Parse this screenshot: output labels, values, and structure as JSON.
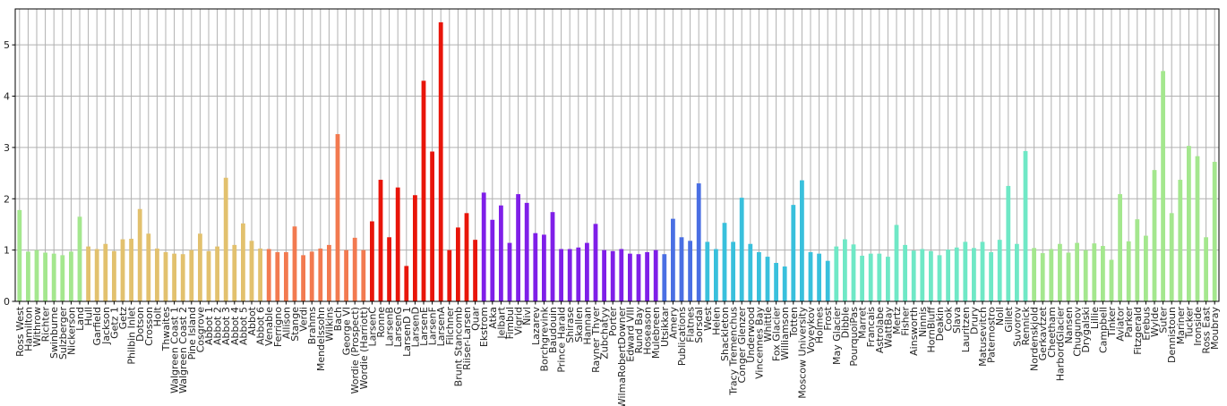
{
  "chart_data": {
    "type": "bar",
    "grid": true,
    "ylim": [
      0,
      5.7
    ],
    "yticks": [
      "0",
      "1",
      "2",
      "3",
      "4",
      "5"
    ],
    "categories": [
      "Ross West",
      "Hamilton",
      "Withrow",
      "Richter",
      "Swinburne",
      "Sulzberger",
      "Nickerson",
      "Land",
      "Hull",
      "Garfield",
      "Jackson",
      "Getz 1",
      "Getz",
      "Philbin Inlet",
      "Dotson",
      "Crosson",
      "Holt",
      "Thwaites",
      "Walgreen Coast 1",
      "Walgreen Coast 2",
      "Pine Island",
      "Cosgrove",
      "Abbot 1",
      "Abbot 2",
      "Abbot 3",
      "Abbot 4",
      "Abbot 5",
      "Abbot",
      "Abbot 6",
      "Venable",
      "Ferrigno",
      "Allison",
      "Stange",
      "Verdi",
      "Brahms",
      "Mendelssohn",
      "Wilkins",
      "Bach",
      "George VI",
      "Wordie (Prospect)",
      "Wordie (Harriott)",
      "LarsenC",
      "Ronne",
      "LarsenB",
      "LarsenG",
      "LarsenD 1",
      "LarsenD",
      "LarsenE",
      "LarsenF",
      "LarsenA",
      "Filchner",
      "Brunt Stancomb",
      "Riiser-Larsen",
      "Quar",
      "Ekstrom",
      "Atka",
      "Jelbart",
      "Fimbul",
      "Vigrid",
      "Nivl",
      "Lazarev",
      "Borchgrevink",
      "Baudouin",
      "Prince Harald",
      "Shirase",
      "Skallen",
      "Hannan",
      "Rayner Thyer",
      "Zubchatyy",
      "Porter",
      "WilmaRobertDowner",
      "Edward VIII",
      "Rund Bay",
      "Hoseason",
      "Mulebreen",
      "Utsikkar",
      "Amery",
      "Publications",
      "Flatnes",
      "Sorsdal",
      "West",
      "Helen",
      "Shackleton",
      "Tracy Tremenchus",
      "Conger Glenzer",
      "Underwood",
      "Vincennes Bay",
      "Whittle",
      "Fox Glacier",
      "Williamson",
      "Totten",
      "Moscow University",
      "Voyeykov",
      "Holmes",
      "Frost",
      "May Glacier",
      "Dibble",
      "PourquoiPas",
      "Marret",
      "Francais",
      "Astrolabe",
      "WattBay",
      "Mertz",
      "Fisher",
      "Ainsworth",
      "Ninnis",
      "HornBluff",
      "Deakin",
      "Cook",
      "Slava",
      "Lauritzen",
      "Drury",
      "Matusevitch",
      "Paternostro",
      "Noll",
      "Gillet",
      "Suvorov",
      "Rennick",
      "Nordenskjold",
      "Gerkavtzet",
      "Cheetham",
      "HarbordGlacier",
      "Nansen",
      "Chugunov",
      "Drygalski",
      "Lillie",
      "Campbell",
      "Tinker",
      "Aviator",
      "Parker",
      "Fitzgerald",
      "Erebus",
      "Wylde",
      "Suter",
      "Dennistoun",
      "Mariner",
      "Tucker",
      "Ironside",
      "Ross East",
      "Moubray"
    ],
    "values": [
      1.78,
      0.97,
      1.0,
      0.95,
      0.93,
      0.9,
      0.97,
      1.65,
      1.07,
      1.02,
      1.12,
      0.98,
      1.21,
      1.22,
      1.8,
      1.32,
      1.03,
      0.96,
      0.93,
      0.92,
      1.0,
      1.32,
      0.98,
      1.07,
      2.41,
      1.1,
      1.52,
      1.18,
      1.03,
      1.02,
      0.96,
      0.96,
      1.46,
      0.9,
      0.97,
      1.03,
      1.1,
      3.26,
      1.0,
      1.24,
      1.0,
      1.56,
      2.37,
      1.25,
      2.22,
      0.69,
      2.07,
      4.3,
      2.92,
      5.44,
      1.0,
      1.44,
      1.72,
      1.2,
      2.12,
      1.59,
      1.87,
      1.14,
      2.09,
      1.92,
      1.33,
      1.3,
      1.74,
      1.02,
      1.02,
      1.05,
      1.14,
      1.51,
      1.0,
      0.98,
      1.02,
      0.93,
      0.92,
      0.96,
      1.0,
      0.92,
      1.61,
      1.25,
      1.18,
      2.3,
      1.16,
      1.02,
      1.53,
      1.16,
      2.02,
      1.12,
      0.96,
      0.87,
      0.75,
      0.68,
      1.88,
      2.36,
      0.96,
      0.93,
      0.79,
      1.07,
      1.21,
      1.11,
      0.89,
      0.93,
      0.93,
      0.87,
      1.49,
      1.1,
      0.99,
      1.02,
      0.98,
      0.9,
      1.01,
      1.05,
      1.16,
      1.04,
      1.16,
      0.96,
      1.2,
      2.25,
      1.12,
      2.93,
      1.04,
      0.94,
      1.02,
      1.12,
      0.95,
      1.14,
      1.0,
      1.13,
      1.08,
      0.81,
      2.09,
      1.17,
      1.6,
      1.28,
      2.56,
      4.49,
      1.72,
      2.37,
      3.03,
      2.83,
      1.25,
      2.72
    ],
    "colors": [
      "#a4e78e",
      "#a4e78e",
      "#a4e78e",
      "#a4e78e",
      "#a4e78e",
      "#a4e78e",
      "#a4e78e",
      "#a4e78e",
      "#e2c16e",
      "#e2c16e",
      "#e2c16e",
      "#e2c16e",
      "#e2c16e",
      "#e2c16e",
      "#e2c16e",
      "#e2c16e",
      "#e2c16e",
      "#e2c16e",
      "#e2c16e",
      "#e2c16e",
      "#e2c16e",
      "#e2c16e",
      "#e2c16e",
      "#e2c16e",
      "#e2c16e",
      "#e2c16e",
      "#e2c16e",
      "#e2c16e",
      "#e2c16e",
      "#f27a50",
      "#f27a50",
      "#f27a50",
      "#f27a50",
      "#f27a50",
      "#f27a50",
      "#f27a50",
      "#f27a50",
      "#f27a50",
      "#f27a50",
      "#f27a50",
      "#f27a50",
      "#e8150a",
      "#e8150a",
      "#e8150a",
      "#e8150a",
      "#e8150a",
      "#e8150a",
      "#e8150a",
      "#e8150a",
      "#e8150a",
      "#e8150a",
      "#e8150a",
      "#e8150a",
      "#e8150a",
      "#7f1fe8",
      "#7f1fe8",
      "#7f1fe8",
      "#7f1fe8",
      "#7f1fe8",
      "#7f1fe8",
      "#7f1fe8",
      "#7f1fe8",
      "#7f1fe8",
      "#7f1fe8",
      "#7f1fe8",
      "#7f1fe8",
      "#7f1fe8",
      "#7f1fe8",
      "#7f1fe8",
      "#7f1fe8",
      "#7f1fe8",
      "#7f1fe8",
      "#7f1fe8",
      "#7f1fe8",
      "#7f1fe8",
      "#4a6fe3",
      "#4a6fe3",
      "#4a6fe3",
      "#4a6fe3",
      "#4a6fe3",
      "#39c0dc",
      "#39c0dc",
      "#39c0dc",
      "#39c0dc",
      "#39c0dc",
      "#39c0dc",
      "#39c0dc",
      "#39c0dc",
      "#39c0dc",
      "#39c0dc",
      "#39c0dc",
      "#39c0dc",
      "#39c0dc",
      "#39c0dc",
      "#39c0dc",
      "#6fe8c6",
      "#6fe8c6",
      "#6fe8c6",
      "#6fe8c6",
      "#6fe8c6",
      "#6fe8c6",
      "#6fe8c6",
      "#6fe8c6",
      "#6fe8c6",
      "#6fe8c6",
      "#6fe8c6",
      "#6fe8c6",
      "#6fe8c6",
      "#6fe8c6",
      "#6fe8c6",
      "#6fe8c6",
      "#6fe8c6",
      "#6fe8c6",
      "#6fe8c6",
      "#6fe8c6",
      "#6fe8c6",
      "#6fe8c6",
      "#6fe8c6",
      "#a4e78e",
      "#a4e78e",
      "#a4e78e",
      "#a4e78e",
      "#a4e78e",
      "#a4e78e",
      "#a4e78e",
      "#a4e78e",
      "#a4e78e",
      "#a4e78e",
      "#a4e78e",
      "#a4e78e",
      "#a4e78e",
      "#a4e78e",
      "#a4e78e",
      "#a4e78e",
      "#a4e78e",
      "#a4e78e",
      "#a4e78e",
      "#a4e78e",
      "#a4e78e",
      "#a4e78e"
    ]
  }
}
